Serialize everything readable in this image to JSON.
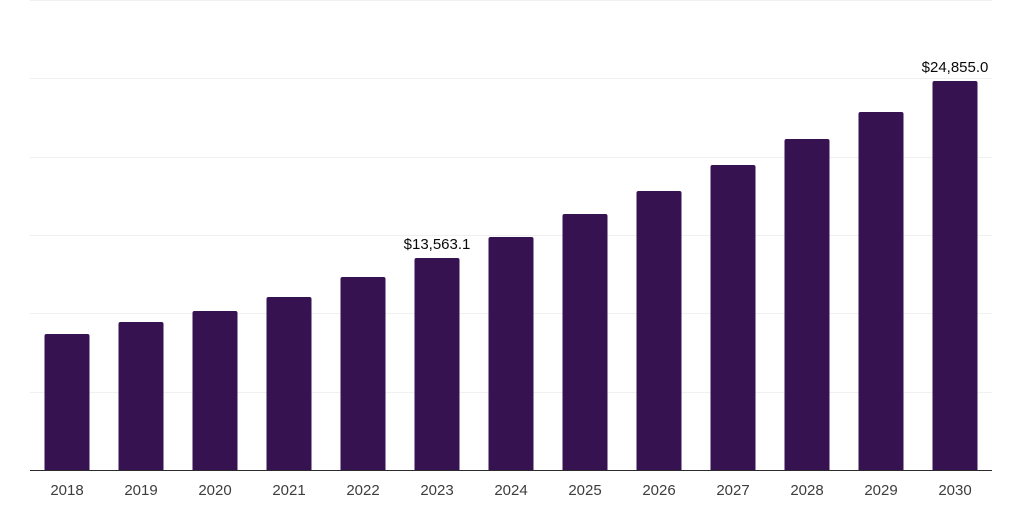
{
  "chart_data": {
    "type": "bar",
    "title": "",
    "xlabel": "",
    "ylabel": "",
    "categories": [
      "2018",
      "2019",
      "2020",
      "2021",
      "2022",
      "2023",
      "2024",
      "2025",
      "2026",
      "2027",
      "2028",
      "2029",
      "2030"
    ],
    "values": [
      8680,
      9450,
      10150,
      11040,
      12320,
      13563.1,
      14870,
      16340,
      17810,
      19470,
      21130,
      22850,
      24855.0
    ],
    "value_labels": [
      "",
      "",
      "",
      "",
      "",
      "$13,563.1",
      "",
      "",
      "",
      "",
      "",
      "",
      "$24,855.0"
    ],
    "ylim": [
      0,
      30000
    ],
    "gridline_step": 5000,
    "grid": "horizontal-only",
    "y_tick_labels_visible": false,
    "legend": "none",
    "bar_color": "#371250",
    "gridline_color": "#f0f0f0",
    "axis_line_color": "#2b2b2b",
    "tick_label_color": "#3d3d3d",
    "value_label_color": "#0a0a0a",
    "background_color": "#ffffff"
  }
}
